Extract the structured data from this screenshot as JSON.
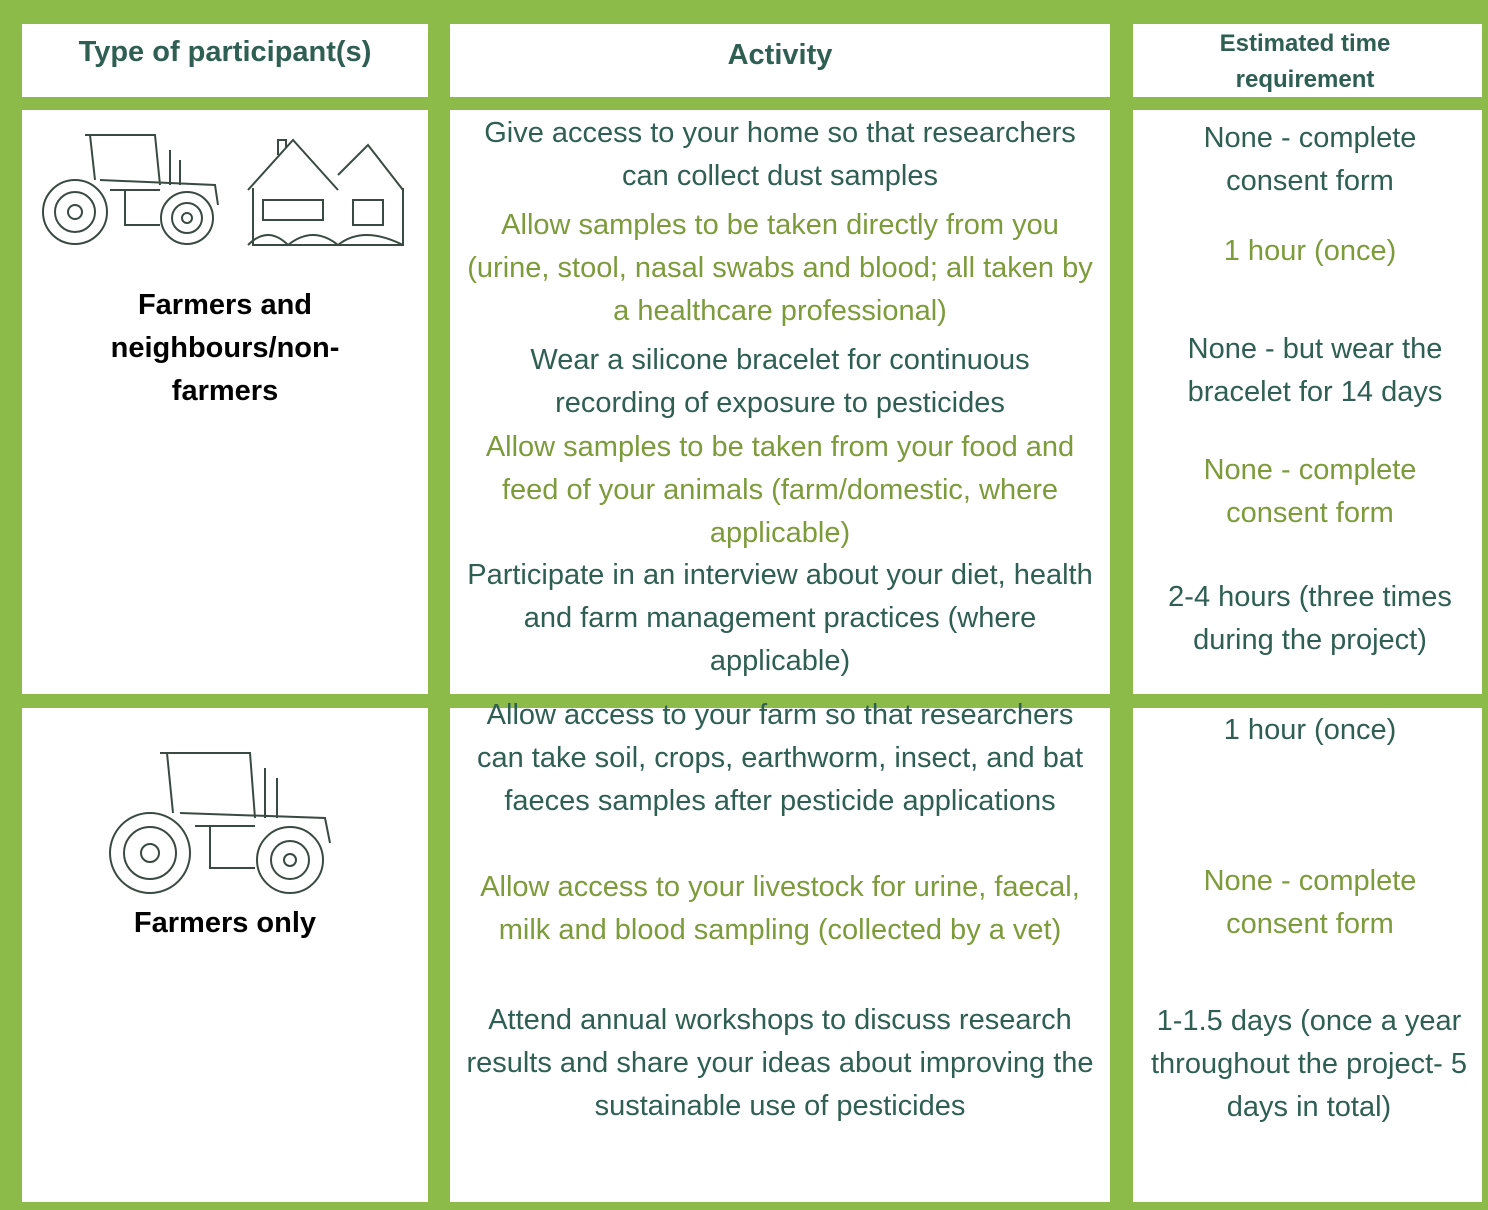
{
  "header": {
    "participant": "Type of participant(s)",
    "activity": "Activity",
    "time": "Estimated time requirement"
  },
  "rows": [
    {
      "participant": "Farmers and neighbours/non-farmers",
      "activities": [
        "Give access to your home so that researchers can collect dust samples",
        "Allow samples to be taken directly from you (urine, stool, nasal swabs and blood; all taken by a healthcare professional)",
        "Wear a silicone bracelet for continuous recording of exposure to pesticides",
        "Allow samples to be taken from your food and feed of your animals (farm/domestic, where applicable)",
        "Participate in an interview about your diet, health and farm management practices (where applicable)"
      ],
      "times": [
        "None - complete consent form",
        "1 hour (once)",
        "None - but wear the bracelet for 14 days",
        "None - complete consent form",
        "2-4 hours (three times during the project)"
      ]
    },
    {
      "participant": "Farmers only",
      "activities": [
        "Allow access to your farm so that researchers can take soil, crops, earthworm, insect, and bat faeces samples after pesticide applications",
        "Allow access to your livestock for urine, faecal, milk and blood sampling (collected by a vet)",
        "Attend annual workshops to discuss research results and share your ideas about improving the sustainable use of pesticides"
      ],
      "times": [
        "1 hour (once)",
        "None - complete consent form",
        "1-1.5 days (once a year throughout the project- 5 days in total)"
      ]
    }
  ]
}
